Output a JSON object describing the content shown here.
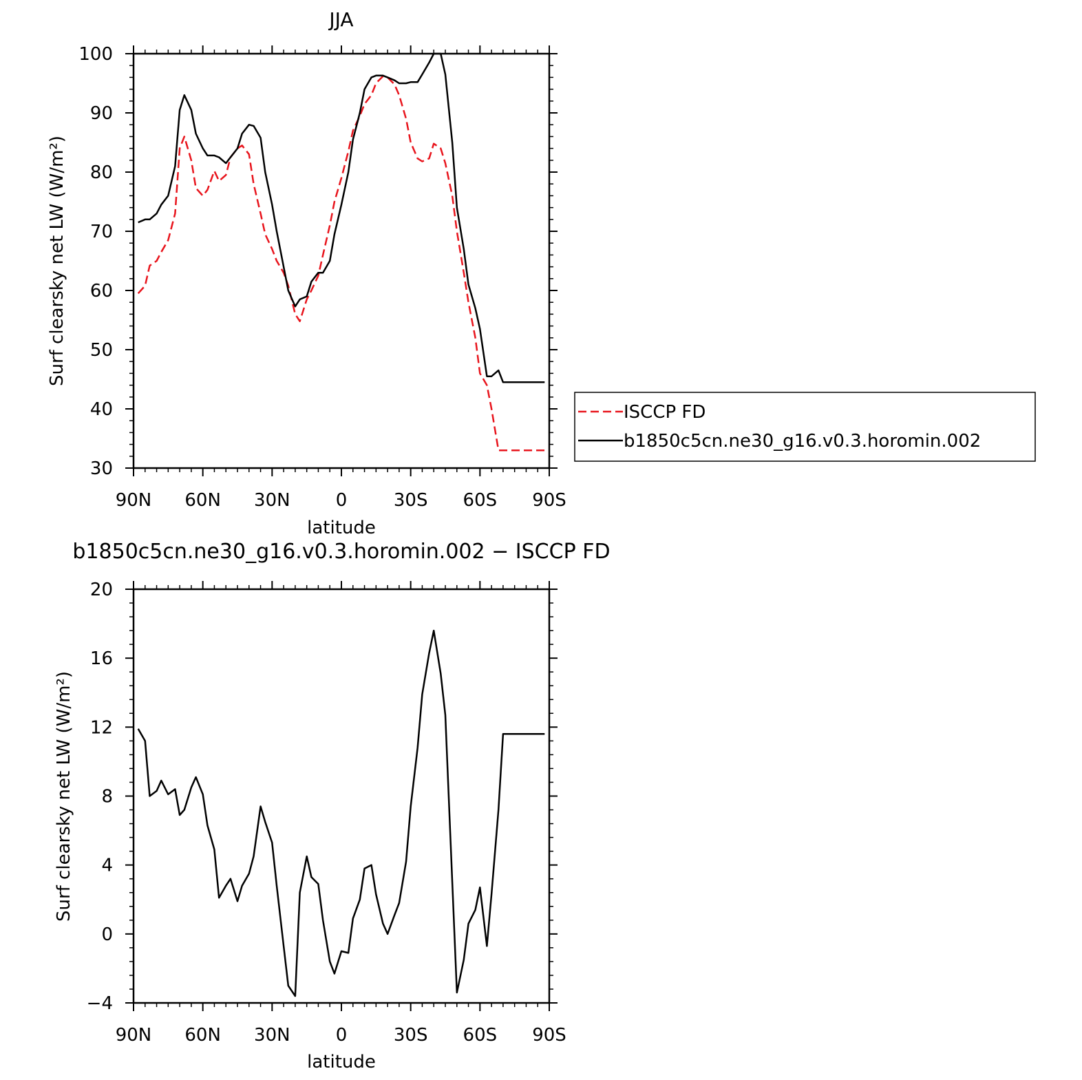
{
  "chart_data": [
    {
      "type": "line",
      "title": "JJA",
      "xlabel": "latitude",
      "ylabel": "Surf clearsky net LW (W/m²)",
      "xlim": [
        90,
        -90
      ],
      "ylim": [
        30,
        100
      ],
      "x_ticks": [
        90,
        60,
        30,
        0,
        -30,
        -60,
        -90
      ],
      "x_tick_labels": [
        "90N",
        "60N",
        "30N",
        "0",
        "30S",
        "60S",
        "90S"
      ],
      "y_ticks": [
        30,
        40,
        50,
        60,
        70,
        80,
        90,
        100
      ],
      "y_tick_labels": [
        "30",
        "40",
        "50",
        "60",
        "70",
        "80",
        "90",
        "100"
      ],
      "legend_position": "right",
      "series": [
        {
          "name": "ISCCP FD",
          "color": "#e8141c",
          "dash": "dashed",
          "x": [
            88,
            85,
            83,
            80,
            78,
            75,
            72,
            70,
            68,
            65,
            63,
            60,
            58,
            55,
            53,
            50,
            48,
            45,
            43,
            40,
            38,
            35,
            33,
            30,
            28,
            25,
            23,
            20,
            18,
            15,
            13,
            10,
            8,
            5,
            3,
            0,
            -3,
            -5,
            -8,
            -10,
            -13,
            -15,
            -18,
            -20,
            -23,
            -25,
            -28,
            -30,
            -33,
            -35,
            -38,
            -40,
            -43,
            -45,
            -48,
            -50,
            -53,
            -55,
            -58,
            -60,
            -63,
            -65,
            -68,
            -70,
            -73,
            -75,
            -78,
            -80,
            -83,
            -85,
            -88
          ],
          "y": [
            59.5,
            60.8,
            64.2,
            65.0,
            66.5,
            68.5,
            73.0,
            84.0,
            86.0,
            82.0,
            77.3,
            76.0,
            77.0,
            80.2,
            78.5,
            79.5,
            82.5,
            84.0,
            84.5,
            83.0,
            78.0,
            73.0,
            69.5,
            67.0,
            65.0,
            63.0,
            60.8,
            56.0,
            54.8,
            58.5,
            60.0,
            62.5,
            66.0,
            71.0,
            75.0,
            79.0,
            83.5,
            87.0,
            89.5,
            91.5,
            93.0,
            95.0,
            96.2,
            96.0,
            94.8,
            93.0,
            89.0,
            85.0,
            82.3,
            81.8,
            82.3,
            84.8,
            84.0,
            81.5,
            76.0,
            70.0,
            63.0,
            58.0,
            52.0,
            46.0,
            44.0,
            40.0,
            33.0,
            33.0,
            33.0,
            33.0,
            33.0,
            33.0,
            33.0,
            33.0,
            33.0
          ]
        },
        {
          "name": "b1850c5cn.ne30_g16.v0.3.horomin.002",
          "color": "#000000",
          "dash": "solid",
          "x": [
            88,
            85,
            83,
            80,
            78,
            75,
            72,
            70,
            68,
            65,
            63,
            60,
            58,
            55,
            53,
            50,
            48,
            45,
            43,
            40,
            38,
            35,
            33,
            30,
            28,
            25,
            23,
            20,
            18,
            15,
            13,
            10,
            8,
            5,
            3,
            0,
            -3,
            -5,
            -8,
            -10,
            -13,
            -15,
            -18,
            -20,
            -23,
            -25,
            -28,
            -30,
            -33,
            -35,
            -38,
            -40,
            -43,
            -45,
            -48,
            -50,
            -53,
            -55,
            -58,
            -60,
            -63,
            -65,
            -68,
            -70,
            -73,
            -75,
            -78,
            -80,
            -83,
            -85,
            -88
          ],
          "y": [
            71.5,
            72.0,
            72.0,
            73.0,
            74.5,
            76.0,
            81.0,
            90.5,
            93.0,
            90.5,
            86.5,
            84.0,
            82.8,
            82.8,
            82.5,
            81.5,
            82.5,
            84.0,
            86.5,
            88.0,
            87.8,
            85.8,
            80.0,
            74.5,
            70.0,
            64.0,
            60.0,
            57.3,
            58.5,
            59.0,
            61.5,
            63.0,
            63.0,
            65.0,
            69.5,
            74.5,
            80.0,
            85.5,
            90.0,
            94.0,
            96.0,
            96.3,
            96.3,
            96.0,
            95.5,
            95.0,
            95.0,
            95.2,
            95.2,
            96.5,
            98.5,
            100.0,
            100.0,
            96.5,
            85.0,
            74.0,
            67.0,
            61.0,
            57.0,
            53.5,
            45.5,
            45.5,
            46.5,
            44.5,
            44.5,
            44.5,
            44.5,
            44.5,
            44.5,
            44.5,
            44.5
          ]
        }
      ]
    },
    {
      "type": "line",
      "title": "b1850c5cn.ne30_g16.v0.3.horomin.002 − ISCCP FD",
      "xlabel": "latitude",
      "ylabel": "Surf clearsky net LW (W/m²)",
      "xlim": [
        90,
        -90
      ],
      "ylim": [
        -4,
        20
      ],
      "x_ticks": [
        90,
        60,
        30,
        0,
        -30,
        -60,
        -90
      ],
      "x_tick_labels": [
        "90N",
        "60N",
        "30N",
        "0",
        "30S",
        "60S",
        "90S"
      ],
      "y_ticks": [
        -4,
        0,
        4,
        8,
        12,
        16,
        20
      ],
      "y_tick_labels": [
        "−4",
        "0",
        "4",
        "8",
        "12",
        "16",
        "20"
      ],
      "series": [
        {
          "color": "#000000",
          "dash": "solid",
          "x": [
            88,
            85,
            83,
            80,
            78,
            75,
            72,
            70,
            68,
            65,
            63,
            60,
            58,
            55,
            53,
            50,
            48,
            45,
            43,
            40,
            38,
            35,
            33,
            30,
            28,
            25,
            23,
            20,
            18,
            15,
            13,
            10,
            8,
            5,
            3,
            0,
            -3,
            -5,
            -8,
            -10,
            -13,
            -15,
            -18,
            -20,
            -23,
            -25,
            -28,
            -30,
            -33,
            -35,
            -38,
            -40,
            -43,
            -45,
            -48,
            -50,
            -53,
            -55,
            -58,
            -60,
            -63,
            -65,
            -68,
            -70,
            -73,
            -75,
            -78,
            -80,
            -83,
            -85,
            -88
          ],
          "y": [
            11.9,
            11.2,
            8.0,
            8.3,
            8.9,
            8.1,
            8.4,
            6.9,
            7.2,
            8.5,
            9.1,
            8.1,
            6.3,
            4.9,
            2.1,
            2.8,
            3.2,
            1.9,
            2.8,
            3.5,
            4.5,
            7.4,
            6.5,
            5.3,
            2.8,
            -0.7,
            -3.0,
            -3.6,
            2.4,
            4.5,
            3.3,
            2.9,
            0.8,
            -1.6,
            -2.3,
            -1.0,
            -1.1,
            0.9,
            2.0,
            3.8,
            4.0,
            2.3,
            0.6,
            0.0,
            1.1,
            1.8,
            4.2,
            7.4,
            10.8,
            13.9,
            16.3,
            17.6,
            15.1,
            12.7,
            3.0,
            -3.4,
            -1.5,
            0.6,
            1.4,
            2.7,
            -0.7,
            2.3,
            7.2,
            11.6,
            11.6,
            11.6,
            11.6,
            11.6,
            11.6,
            11.6,
            11.6
          ]
        }
      ]
    }
  ]
}
